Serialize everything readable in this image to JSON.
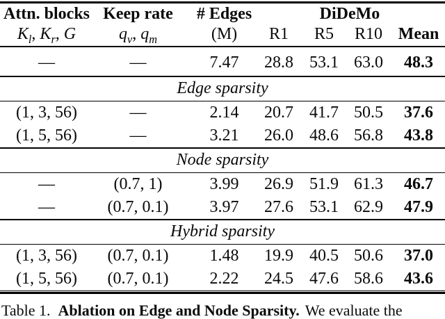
{
  "page": {
    "background": "#ffffff",
    "text_color": "#0a0a0a",
    "rule_color": "#000000"
  },
  "table": {
    "header": {
      "attn_title": "Attn. blocks",
      "attn_math": [
        {
          "t": "K",
          "i": true
        },
        {
          "t": "l",
          "sub": true
        },
        {
          "t": ", "
        },
        {
          "t": "K",
          "i": true
        },
        {
          "t": "r",
          "sub": true
        },
        {
          "t": ", "
        },
        {
          "t": "G",
          "i": true
        }
      ],
      "keep_title": "Keep rate",
      "keep_math": [
        {
          "t": "q",
          "i": true
        },
        {
          "t": "v",
          "sub": true
        },
        {
          "t": ", "
        },
        {
          "t": "q",
          "i": true
        },
        {
          "t": "m",
          "sub": true
        }
      ],
      "edges_title": "# Edges",
      "edges_unit": "(M)",
      "group_title": "DiDeMo",
      "r1": "R1",
      "r5": "R5",
      "r10": "R10",
      "mean": "Mean"
    },
    "baseline": {
      "attn": "—",
      "keep": "—",
      "edges": "7.47",
      "r1": "28.8",
      "r5": "53.1",
      "r10": "63.0",
      "mean": "48.3"
    },
    "sections": [
      {
        "label": "Edge sparsity",
        "rows": [
          {
            "attn": "(1, 3, 56)",
            "keep": "—",
            "edges": "2.14",
            "r1": "20.7",
            "r5": "41.7",
            "r10": "50.5",
            "mean": "37.6"
          },
          {
            "attn": "(1, 5, 56)",
            "keep": "—",
            "edges": "3.21",
            "r1": "26.0",
            "r5": "48.6",
            "r10": "56.8",
            "mean": "43.8"
          }
        ]
      },
      {
        "label": "Node sparsity",
        "rows": [
          {
            "attn": "—",
            "keep": "(0.7, 1)",
            "edges": "3.99",
            "r1": "26.9",
            "r5": "51.9",
            "r10": "61.3",
            "mean": "46.7"
          },
          {
            "attn": "—",
            "keep": "(0.7, 0.1)",
            "edges": "3.97",
            "r1": "27.6",
            "r5": "53.1",
            "r10": "62.9",
            "mean": "47.9"
          }
        ]
      },
      {
        "label": "Hybrid sparsity",
        "rows": [
          {
            "attn": "(1, 3, 56)",
            "keep": "(0.7, 0.1)",
            "edges": "1.48",
            "r1": "19.9",
            "r5": "40.5",
            "r10": "50.6",
            "mean": "37.0"
          },
          {
            "attn": "(1, 5, 56)",
            "keep": "(0.7, 0.1)",
            "edges": "2.22",
            "r1": "24.5",
            "r5": "47.6",
            "r10": "58.6",
            "mean": "43.6"
          }
        ]
      }
    ],
    "caption": {
      "prefix": "Table 1.",
      "title": "Ablation on Edge and Node Sparsity.",
      "rest": "We evaluate the"
    }
  }
}
